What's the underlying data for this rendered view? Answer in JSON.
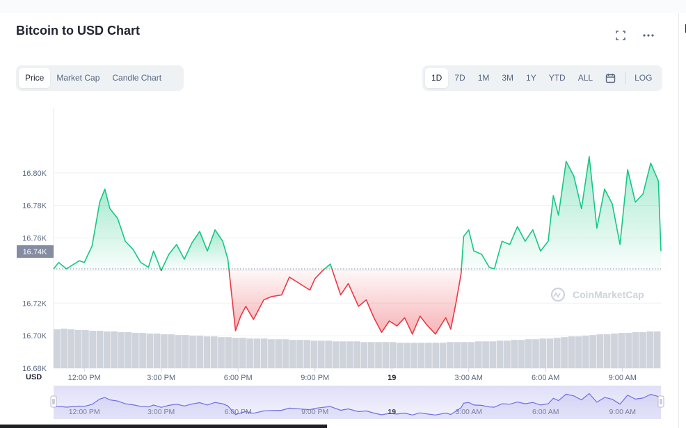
{
  "title": "Bitcoin to USD Chart",
  "header_icons": [
    "fullscreen-icon",
    "more-icon"
  ],
  "chart_tabs": [
    {
      "label": "Price",
      "active": true
    },
    {
      "label": "Market Cap",
      "active": false
    },
    {
      "label": "Candle Chart",
      "active": false
    }
  ],
  "ranges": [
    {
      "label": "1D",
      "active": true
    },
    {
      "label": "7D",
      "active": false
    },
    {
      "label": "1M",
      "active": false
    },
    {
      "label": "3M",
      "active": false
    },
    {
      "label": "1Y",
      "active": false
    },
    {
      "label": "YTD",
      "active": false
    },
    {
      "label": "ALL",
      "active": false
    }
  ],
  "log_label": "LOG",
  "watermark": "CoinMarketCap",
  "colors": {
    "up": "#16c784",
    "down": "#ea3943",
    "navigator": "#6f6ce0",
    "volume": "#cfd3db"
  },
  "chart_data": {
    "type": "area",
    "currency_label": "USD",
    "baseline": 16741,
    "baseline_label": "16.74K",
    "ylim": [
      16680,
      16840
    ],
    "y_ticks": [
      16680,
      16700,
      16720,
      16740,
      16760,
      16780,
      16800
    ],
    "y_tick_labels": [
      "16.68K",
      "16.70K",
      "16.72K",
      "16.74K",
      "16.76K",
      "16.78K",
      "16.80K"
    ],
    "x_range_hours": [
      10.8,
      34.5
    ],
    "x_ticks": [
      {
        "hour": 12,
        "label": "12:00 PM",
        "bold": false
      },
      {
        "hour": 15,
        "label": "3:00 PM",
        "bold": false
      },
      {
        "hour": 18,
        "label": "6:00 PM",
        "bold": false
      },
      {
        "hour": 21,
        "label": "9:00 PM",
        "bold": false
      },
      {
        "hour": 24,
        "label": "19",
        "bold": true
      },
      {
        "hour": 27,
        "label": "3:00 AM",
        "bold": false
      },
      {
        "hour": 30,
        "label": "6:00 AM",
        "bold": false
      },
      {
        "hour": 33,
        "label": "9:00 AM",
        "bold": false
      }
    ],
    "x": [
      10.8,
      11.0,
      11.3,
      11.5,
      11.8,
      12.0,
      12.3,
      12.6,
      12.8,
      13.0,
      13.3,
      13.6,
      13.9,
      14.2,
      14.5,
      14.7,
      15.0,
      15.3,
      15.6,
      15.9,
      16.2,
      16.5,
      16.8,
      17.1,
      17.4,
      17.6,
      17.9,
      18.1,
      18.3,
      18.6,
      19.0,
      19.3,
      19.7,
      20.0,
      20.5,
      20.8,
      21.0,
      21.3,
      21.6,
      22.0,
      22.3,
      22.7,
      23.0,
      23.3,
      23.6,
      23.9,
      24.2,
      24.5,
      24.8,
      25.1,
      25.4,
      25.7,
      26.1,
      26.3,
      26.5,
      26.7,
      26.8,
      27.0,
      27.2,
      27.5,
      27.8,
      28.0,
      28.3,
      28.6,
      28.9,
      29.2,
      29.5,
      29.8,
      30.1,
      30.3,
      30.5,
      30.8,
      31.1,
      31.4,
      31.7,
      32.0,
      32.3,
      32.6,
      32.9,
      33.2,
      33.5,
      33.8,
      34.1,
      34.4,
      34.5
    ],
    "y": [
      16741,
      16745,
      16741,
      16743,
      16746,
      16745,
      16755,
      16782,
      16790,
      16778,
      16772,
      16758,
      16753,
      16745,
      16742,
      16752,
      16740,
      16750,
      16756,
      16747,
      16757,
      16764,
      16752,
      16765,
      16758,
      16747,
      16703,
      16712,
      16718,
      16710,
      16722,
      16724,
      16725,
      16736,
      16731,
      16728,
      16735,
      16740,
      16744,
      16725,
      16732,
      16718,
      16722,
      16711,
      16702,
      16709,
      16706,
      16711,
      16701,
      16712,
      16706,
      16701,
      16711,
      16704,
      16720,
      16738,
      16761,
      16765,
      16752,
      16750,
      16742,
      16741,
      16758,
      16756,
      16767,
      16758,
      16765,
      16752,
      16758,
      16786,
      16774,
      16807,
      16798,
      16778,
      16810,
      16766,
      16790,
      16781,
      16756,
      16802,
      16782,
      16787,
      16806,
      16795,
      16752
    ],
    "volume": [
      55,
      56,
      55,
      54,
      54,
      53,
      53,
      52,
      52,
      51,
      51,
      50,
      50,
      49,
      49,
      48,
      48,
      47,
      47,
      46,
      46,
      45,
      45,
      44,
      44,
      43,
      43,
      42,
      42,
      42,
      41,
      41,
      41,
      40,
      40,
      40,
      39,
      39,
      39,
      38,
      38,
      38,
      38,
      37,
      37,
      37,
      37,
      37,
      36,
      36,
      36,
      36,
      36,
      36,
      36,
      37,
      37,
      37,
      37,
      38,
      38,
      38,
      39,
      39,
      40,
      40,
      41,
      41,
      42,
      42,
      43,
      44,
      45,
      45,
      46,
      47,
      48,
      48,
      49,
      50,
      50,
      51,
      51,
      52,
      52
    ]
  }
}
